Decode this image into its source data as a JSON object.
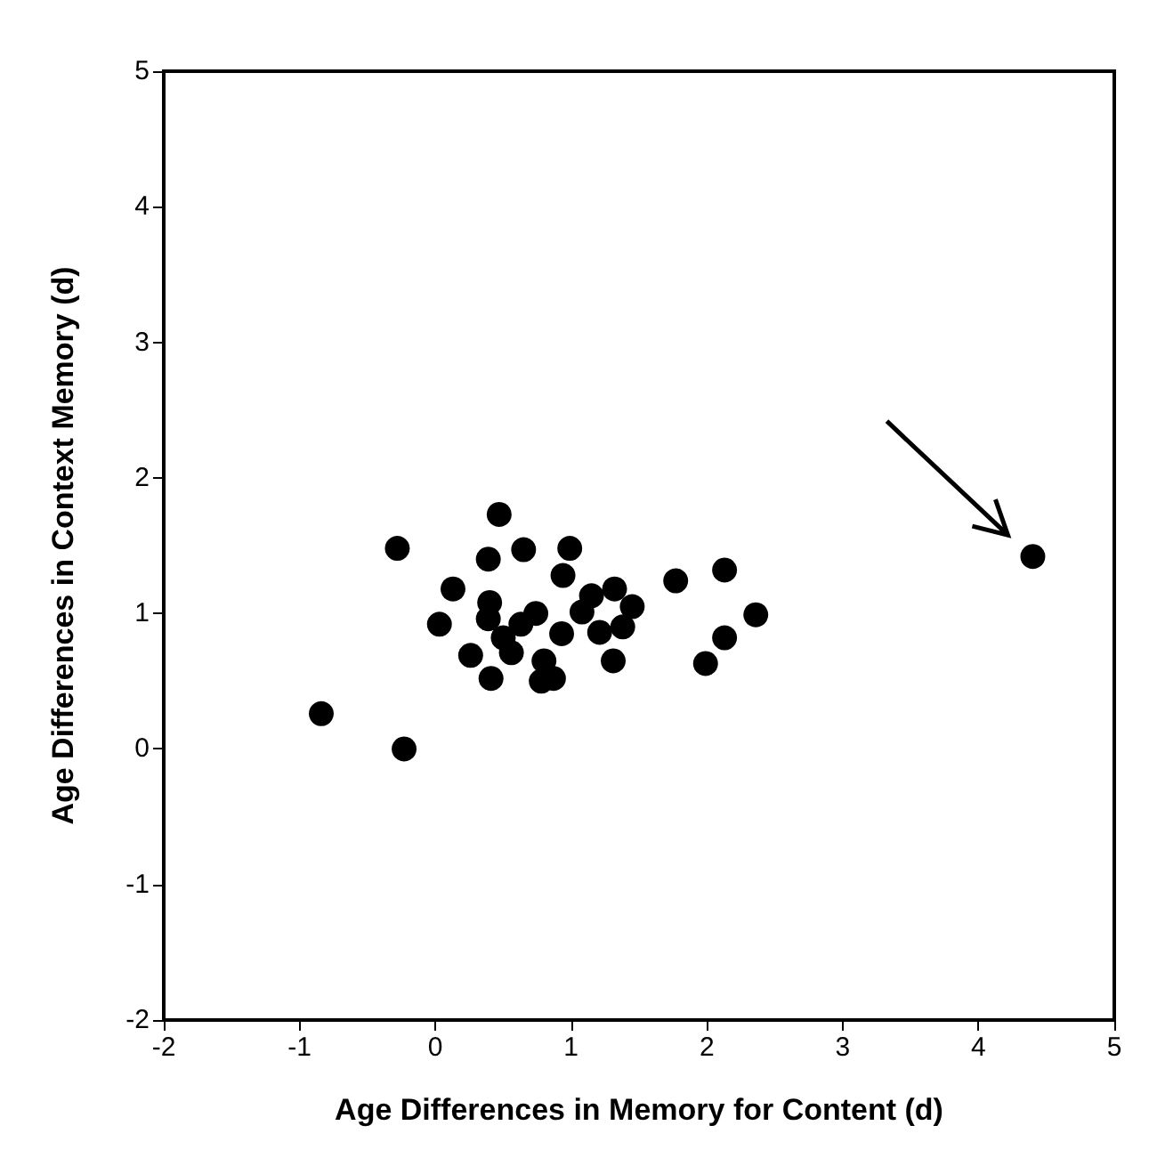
{
  "chart_data": {
    "type": "scatter",
    "xlabel": "Age Differences in Memory for Content (d)",
    "ylabel": "Age Differences in Context Memory (d)",
    "x": [
      0.47,
      -0.28,
      0.39,
      0.65,
      0.99,
      0.94,
      0.13,
      0.03,
      1.77,
      1.99,
      -0.84,
      -0.23,
      1.31,
      0.93,
      0.4,
      0.74,
      0.39,
      0.5,
      0.63,
      0.56,
      0.26,
      0.41,
      0.8,
      0.78,
      0.87,
      1.15,
      1.32,
      1.45,
      1.38,
      1.21,
      1.08,
      2.13,
      2.13,
      2.36,
      4.4
    ],
    "values": [
      1.73,
      1.48,
      1.4,
      1.47,
      1.48,
      1.28,
      1.18,
      0.92,
      1.24,
      0.63,
      0.26,
      0.0,
      0.65,
      0.85,
      1.08,
      1.0,
      0.96,
      0.82,
      0.92,
      0.71,
      0.69,
      0.52,
      0.65,
      0.5,
      0.52,
      1.13,
      1.18,
      1.05,
      0.9,
      0.86,
      1.01,
      1.32,
      0.82,
      0.99,
      1.42
    ],
    "color": "#000000",
    "marker": "circle",
    "grid": false,
    "xlim": [
      -2,
      5
    ],
    "xticks": [
      -2,
      -1,
      0,
      1,
      2,
      3,
      4,
      5
    ],
    "ylim": [
      -2,
      5
    ],
    "yticks": [
      -2,
      -1,
      0,
      1,
      2,
      3,
      4,
      5
    ]
  }
}
